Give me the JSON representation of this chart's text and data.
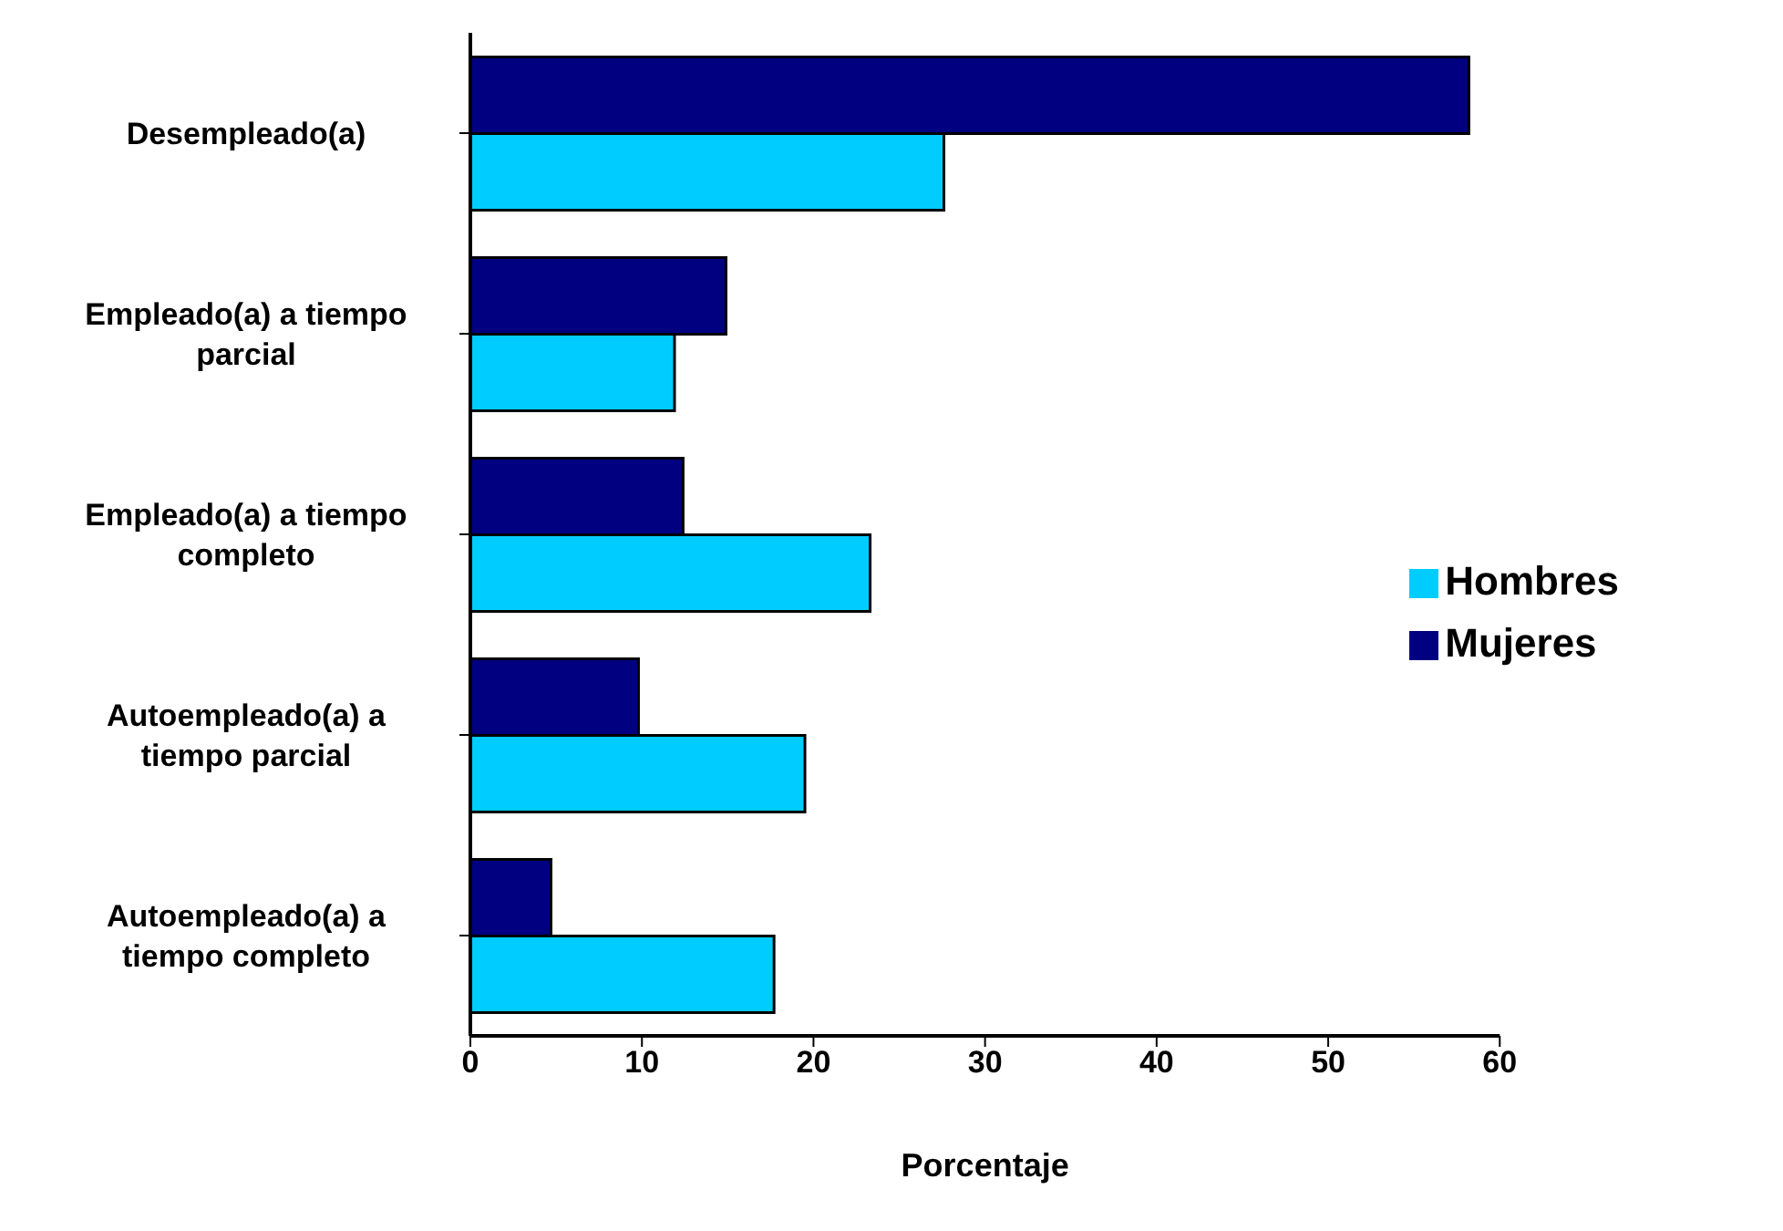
{
  "chart_data": {
    "type": "bar",
    "orientation": "horizontal",
    "xlabel": "Porcentaje",
    "categories": [
      "Desempleado(a)",
      "Empleado(a) a tiempo parcial",
      "Empleado(a) a tiempo completo",
      "Autoempleado(a) a tiempo parcial",
      "Autoempleado(a) a tiempo completo"
    ],
    "series": [
      {
        "name": "Mujeres",
        "color": "#000080",
        "values": [
          58.2,
          14.9,
          12.4,
          9.8,
          4.7
        ]
      },
      {
        "name": "Hombres",
        "color": "#00ccff",
        "values": [
          27.6,
          11.9,
          23.3,
          19.5,
          17.7
        ]
      }
    ],
    "xlim": [
      0,
      60
    ],
    "xticks": [
      0,
      10,
      20,
      30,
      40,
      50,
      60
    ],
    "grid": false,
    "legend": "right"
  }
}
